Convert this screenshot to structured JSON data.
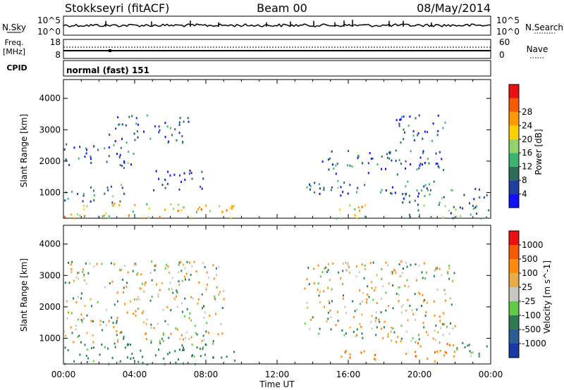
{
  "header": {
    "station": "Stokkseyri (fitACF)",
    "beam": "Beam 00",
    "date": "08/May/2014"
  },
  "strip_panels": {
    "nsky_label": "N.Sky",
    "nsky_tick_top": "10^5",
    "nsky_tick_bottom": "10^0",
    "nsearch_label": "N.Search",
    "nsearch_tick_top": "10^5",
    "nsearch_tick_bottom": "10^0",
    "freq_label_line1": "Freq.",
    "freq_label_line2": "[MHz]",
    "freq_tick_top": "18",
    "freq_tick_bottom": "8",
    "nave_label": "Nave",
    "nave_tick_top": "60",
    "nave_tick_bottom": "0",
    "cpid_label": "CPID",
    "cpid_value": "normal (fast) 151"
  },
  "x_axis": {
    "title": "Time UT",
    "ticks": [
      "00:00",
      "04:00",
      "08:00",
      "12:00",
      "16:00",
      "20:00",
      "00:00"
    ]
  },
  "y_axis": {
    "title": "Slant Range [km]",
    "ticks": [
      "1000",
      "2000",
      "3000",
      "4000"
    ]
  },
  "power_colorbar": {
    "title": "Power [dB]",
    "ticks": [
      "4",
      "8",
      "12",
      "16",
      "20",
      "24",
      "28"
    ],
    "colors": [
      "#1010ff",
      "#1e3f9e",
      "#2f6d5b",
      "#3cb371",
      "#8fd36a",
      "#ffd000",
      "#ff9a00",
      "#ff5a00",
      "#e81010"
    ]
  },
  "velocity_colorbar": {
    "title": "Velocity [m s^-1]",
    "ticks": [
      "1000",
      "500",
      "100",
      "25",
      "-25",
      "-100",
      "-500",
      "-1000"
    ],
    "colors": [
      "#1a3aa6",
      "#2a5d92",
      "#2f7a52",
      "#62c84a",
      "#c8c8c0",
      "#e8ad4a",
      "#ff8a10",
      "#ff5a00",
      "#e81010"
    ]
  },
  "chart_data": [
    {
      "type": "heatmap",
      "title": "Power",
      "xlabel": "Time UT",
      "ylabel": "Slant Range [km]",
      "xlim": [
        "00:00",
        "24:00"
      ],
      "ylim": [
        180,
        4600
      ],
      "colorbar_label": "Power [dB]",
      "colorbar_ticks": [
        4,
        8,
        12,
        16,
        20,
        24,
        28
      ],
      "scatter_regions": [
        {
          "t_start": 0.0,
          "t_end": 9.6,
          "r_min": 200,
          "r_max": 700,
          "power_db": 22
        },
        {
          "t_start": 0.0,
          "t_end": 3.5,
          "r_min": 700,
          "r_max": 1300,
          "power_db": 10
        },
        {
          "t_start": 0.0,
          "t_end": 4.0,
          "r_min": 1800,
          "r_max": 2600,
          "power_db": 10
        },
        {
          "t_start": 2.5,
          "t_end": 7.0,
          "r_min": 2600,
          "r_max": 3500,
          "power_db": 8
        },
        {
          "t_start": 5.0,
          "t_end": 8.0,
          "r_min": 1100,
          "r_max": 1800,
          "power_db": 6
        },
        {
          "t_start": 15.3,
          "t_end": 17.5,
          "r_min": 200,
          "r_max": 700,
          "power_db": 22
        },
        {
          "t_start": 13.5,
          "t_end": 21.0,
          "r_min": 900,
          "r_max": 1400,
          "power_db": 10
        },
        {
          "t_start": 14.5,
          "t_end": 21.5,
          "r_min": 1600,
          "r_max": 2400,
          "power_db": 9
        },
        {
          "t_start": 19.0,
          "t_end": 24.0,
          "r_min": 200,
          "r_max": 1200,
          "power_db": 12
        },
        {
          "t_start": 18.5,
          "t_end": 21.5,
          "r_min": 2600,
          "r_max": 3500,
          "power_db": 8
        }
      ]
    },
    {
      "type": "heatmap",
      "title": "Velocity",
      "xlabel": "Time UT",
      "ylabel": "Slant Range [km]",
      "xlim": [
        "00:00",
        "24:00"
      ],
      "ylim": [
        180,
        4600
      ],
      "colorbar_label": "Velocity [m s^-1]",
      "colorbar_ticks": [
        1000,
        500,
        100,
        25,
        -25,
        -100,
        -500,
        -1000
      ],
      "scatter_regions": [
        {
          "t_start": 0.0,
          "t_end": 9.6,
          "r_min": 200,
          "r_max": 900,
          "velocity": 150
        },
        {
          "t_start": 0.0,
          "t_end": 9.0,
          "r_min": 900,
          "r_max": 3500,
          "velocity": 0
        },
        {
          "t_start": 15.3,
          "t_end": 17.5,
          "r_min": 300,
          "r_max": 700,
          "velocity": -300
        },
        {
          "t_start": 19.0,
          "t_end": 22.0,
          "r_min": 300,
          "r_max": 900,
          "velocity": -300
        },
        {
          "t_start": 13.5,
          "t_end": 22.0,
          "r_min": 900,
          "r_max": 3500,
          "velocity": 0
        },
        {
          "t_start": 22.0,
          "t_end": 24.0,
          "r_min": 300,
          "r_max": 900,
          "velocity": 100
        }
      ]
    }
  ]
}
